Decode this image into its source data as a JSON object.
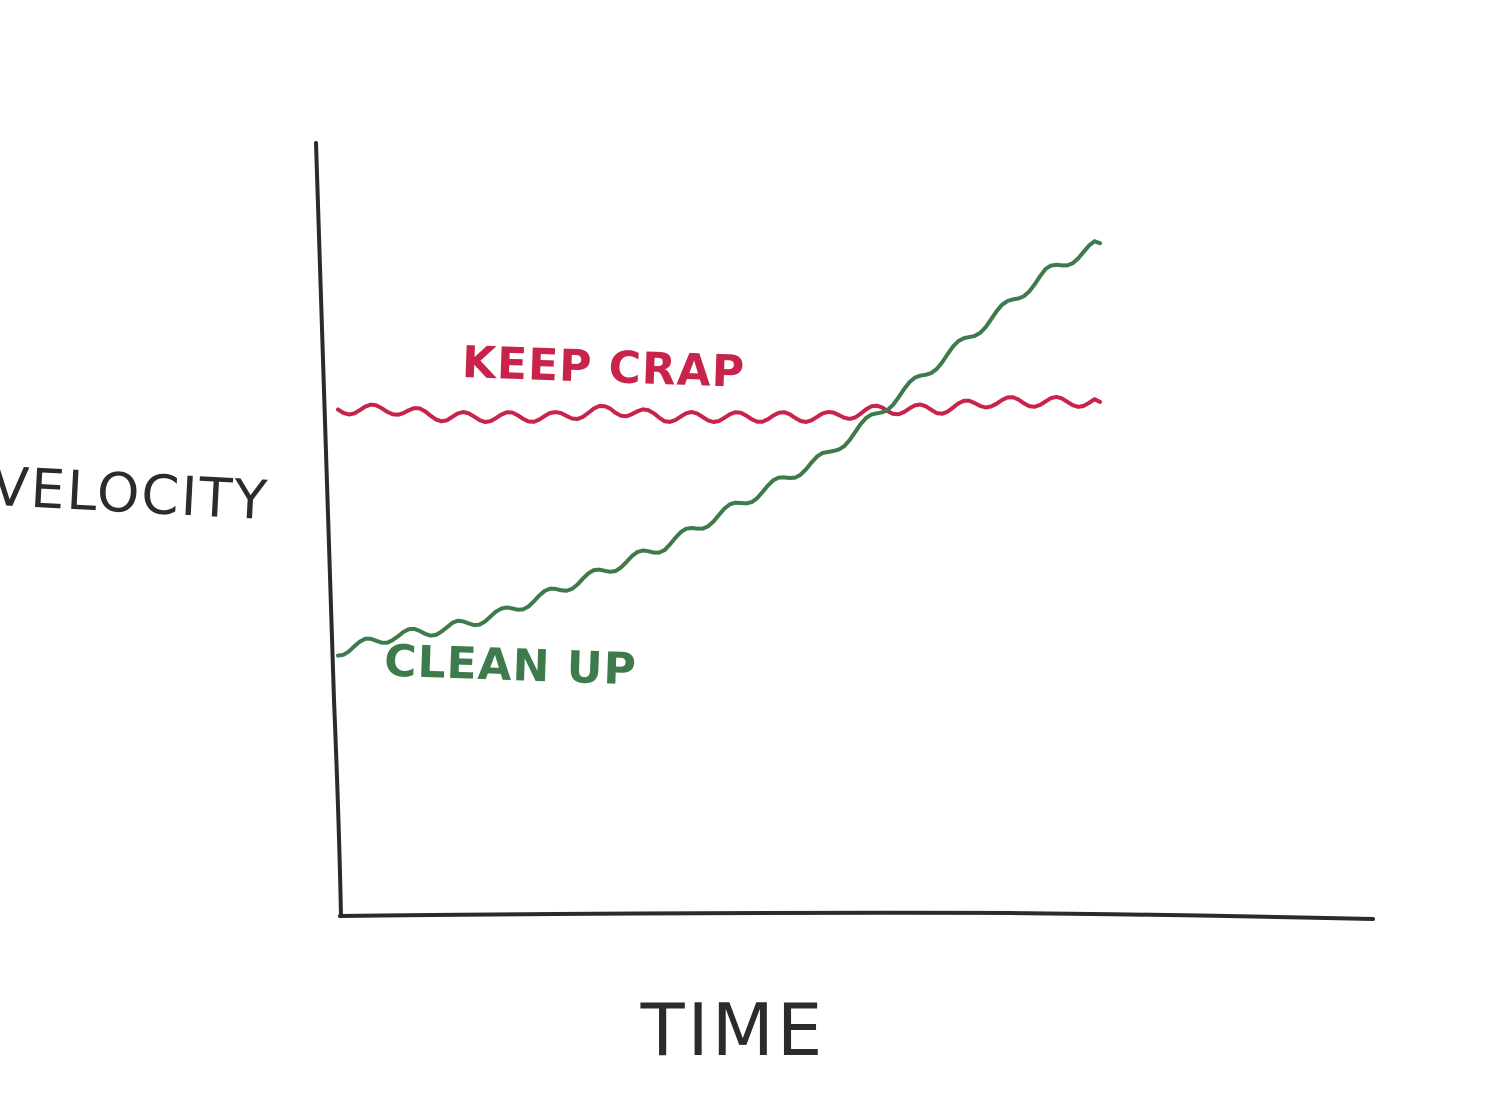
{
  "chart_data": {
    "type": "line",
    "title": "",
    "xlabel": "TIME",
    "ylabel": "VELOCITY",
    "grid": false,
    "legend": "inline labels",
    "xlim": [
      0,
      10
    ],
    "ylim": [
      0,
      10
    ],
    "series": [
      {
        "name": "KEEP CRAP",
        "color": "#c8234a",
        "x": [
          0,
          0.5,
          1,
          1.5,
          2,
          2.5,
          3,
          3.5,
          4,
          4.5,
          5,
          5.5,
          6,
          6.5,
          7
        ],
        "y": [
          6.7,
          6.7,
          6.6,
          6.6,
          6.6,
          6.7,
          6.6,
          6.6,
          6.6,
          6.6,
          6.7,
          6.7,
          6.8,
          6.8,
          6.8
        ]
      },
      {
        "name": "CLEAN UP",
        "color": "#3d7a4c",
        "x": [
          0,
          0.5,
          1,
          1.5,
          2,
          2.5,
          3,
          3.5,
          4,
          4.5,
          5,
          5.5,
          6,
          6.5,
          7
        ],
        "y": [
          3.5,
          3.7,
          3.8,
          4.0,
          4.3,
          4.6,
          4.9,
          5.3,
          5.7,
          6.1,
          6.7,
          7.3,
          7.9,
          8.5,
          8.9
        ]
      }
    ]
  }
}
